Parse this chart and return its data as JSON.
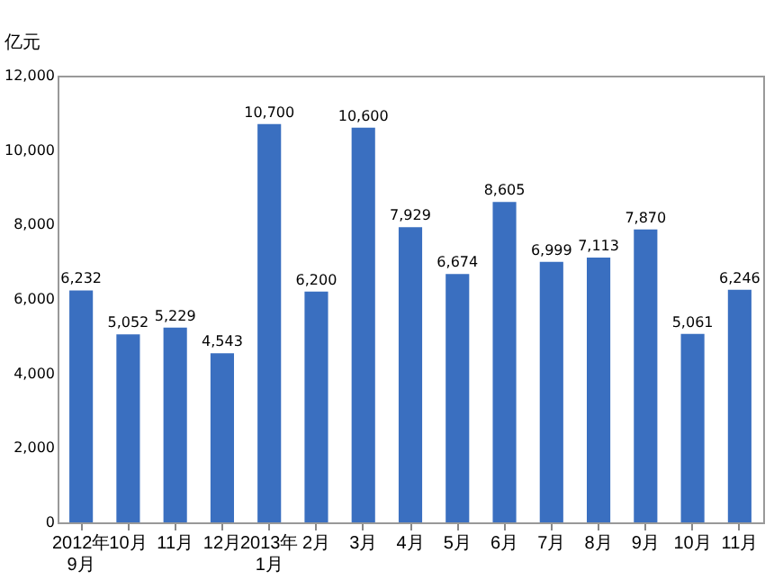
{
  "chart_data": {
    "type": "bar",
    "ylabel": "亿元",
    "categories": [
      "2012年\n9月",
      "10月",
      "11月",
      "12月",
      "2013年\n1月",
      "2月",
      "3月",
      "4月",
      "5月",
      "6月",
      "7月",
      "8月",
      "9月",
      "10月",
      "11月"
    ],
    "values": [
      6232,
      5052,
      5229,
      4543,
      10700,
      6200,
      10600,
      7929,
      6674,
      8605,
      6999,
      7113,
      7870,
      5061,
      6246
    ],
    "value_labels": [
      "6,232",
      "5,052",
      "5,229",
      "4,543",
      "10,700",
      "6,200",
      "10,600",
      "7,929",
      "6,674",
      "8,605",
      "6,999",
      "7,113",
      "7,870",
      "5,061",
      "6,246"
    ],
    "color": "#3a6fc0",
    "ylim": [
      0,
      12000
    ],
    "yticks": [
      0,
      {
        "value": 2000,
        "label": "2,000"
      },
      {
        "value": 4000,
        "label": "4,000"
      },
      {
        "value": 6000,
        "label": "6,000"
      },
      {
        "value": 8000,
        "label": "8,000"
      },
      {
        "value": 10000,
        "label": "10,000"
      },
      {
        "value": 12000,
        "label": "12,000"
      }
    ],
    "grid": false
  }
}
